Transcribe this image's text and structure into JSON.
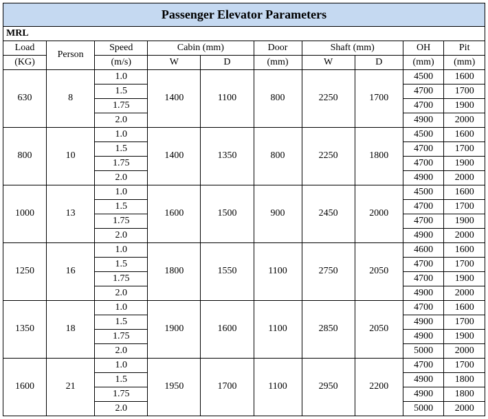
{
  "title": "Passenger Elevator Parameters",
  "section_label": "MRL",
  "columns": {
    "load": {
      "label": "Load",
      "unit": "(KG)"
    },
    "person": {
      "label": "Person"
    },
    "speed": {
      "label": "Speed",
      "unit": "(m/s)"
    },
    "cabin": {
      "label": "Cabin (mm)",
      "sub_w": "W",
      "sub_d": "D"
    },
    "door": {
      "label": "Door",
      "unit": "(mm)"
    },
    "shaft": {
      "label": "Shaft (mm)",
      "sub_w": "W",
      "sub_d": "D"
    },
    "oh": {
      "label": "OH",
      "unit": "(mm)"
    },
    "pit": {
      "label": "Pit",
      "unit": "(mm)"
    }
  },
  "colors": {
    "title_bg": "#c5d9f1",
    "border": "#000000",
    "background": "#ffffff",
    "text": "#000000"
  },
  "fonts": {
    "title_size": 18,
    "title_weight": "bold",
    "cell_size": 14,
    "cell_weight": "normal"
  },
  "groups": [
    {
      "load": 630,
      "person": 8,
      "cabin_w": 1400,
      "cabin_d": 1100,
      "door": 800,
      "shaft_w": 2250,
      "shaft_d": 1700,
      "rows": [
        {
          "speed": "1.0",
          "oh": 4500,
          "pit": 1600
        },
        {
          "speed": "1.5",
          "oh": 4700,
          "pit": 1700
        },
        {
          "speed": "1.75",
          "oh": 4700,
          "pit": 1900
        },
        {
          "speed": "2.0",
          "oh": 4900,
          "pit": 2000
        }
      ]
    },
    {
      "load": 800,
      "person": 10,
      "cabin_w": 1400,
      "cabin_d": 1350,
      "door": 800,
      "shaft_w": 2250,
      "shaft_d": 1800,
      "rows": [
        {
          "speed": "1.0",
          "oh": 4500,
          "pit": 1600
        },
        {
          "speed": "1.5",
          "oh": 4700,
          "pit": 1700
        },
        {
          "speed": "1.75",
          "oh": 4700,
          "pit": 1900
        },
        {
          "speed": "2.0",
          "oh": 4900,
          "pit": 2000
        }
      ]
    },
    {
      "load": 1000,
      "person": 13,
      "cabin_w": 1600,
      "cabin_d": 1500,
      "door": 900,
      "shaft_w": 2450,
      "shaft_d": 2000,
      "rows": [
        {
          "speed": "1.0",
          "oh": 4500,
          "pit": 1600
        },
        {
          "speed": "1.5",
          "oh": 4700,
          "pit": 1700
        },
        {
          "speed": "1.75",
          "oh": 4700,
          "pit": 1900
        },
        {
          "speed": "2.0",
          "oh": 4900,
          "pit": 2000
        }
      ]
    },
    {
      "load": 1250,
      "person": 16,
      "cabin_w": 1800,
      "cabin_d": 1550,
      "door": 1100,
      "shaft_w": 2750,
      "shaft_d": 2050,
      "rows": [
        {
          "speed": "1.0",
          "oh": 4600,
          "pit": 1600
        },
        {
          "speed": "1.5",
          "oh": 4700,
          "pit": 1700
        },
        {
          "speed": "1.75",
          "oh": 4700,
          "pit": 1900
        },
        {
          "speed": "2.0",
          "oh": 4900,
          "pit": 2000
        }
      ]
    },
    {
      "load": 1350,
      "person": 18,
      "cabin_w": 1900,
      "cabin_d": 1600,
      "door": 1100,
      "shaft_w": 2850,
      "shaft_d": 2050,
      "rows": [
        {
          "speed": "1.0",
          "oh": 4700,
          "pit": 1600
        },
        {
          "speed": "1.5",
          "oh": 4900,
          "pit": 1700
        },
        {
          "speed": "1.75",
          "oh": 4900,
          "pit": 1900
        },
        {
          "speed": "2.0",
          "oh": 5000,
          "pit": 2000
        }
      ]
    },
    {
      "load": 1600,
      "person": 21,
      "cabin_w": 1950,
      "cabin_d": 1700,
      "door": 1100,
      "shaft_w": 2950,
      "shaft_d": 2200,
      "rows": [
        {
          "speed": "1.0",
          "oh": 4700,
          "pit": 1700
        },
        {
          "speed": "1.5",
          "oh": 4900,
          "pit": 1800
        },
        {
          "speed": "1.75",
          "oh": 4900,
          "pit": 1800
        },
        {
          "speed": "2.0",
          "oh": 5000,
          "pit": 2000
        }
      ]
    }
  ]
}
